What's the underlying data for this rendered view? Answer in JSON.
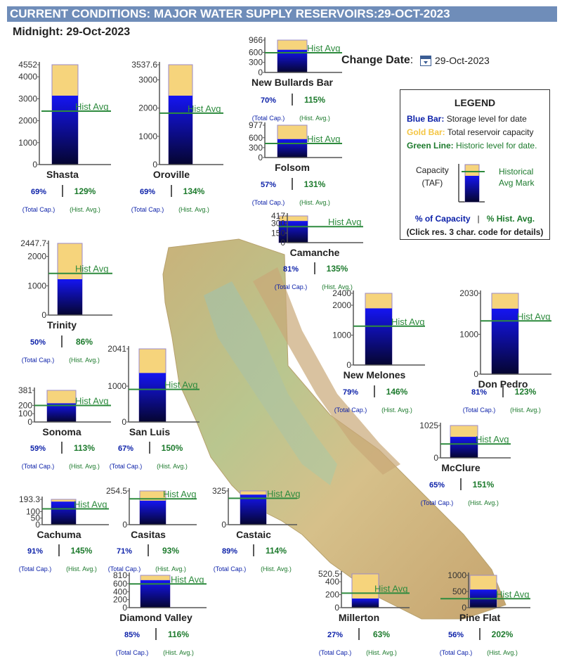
{
  "title": "CURRENT CONDITIONS: MAJOR WATER SUPPLY RESERVOIRS:29-OCT-2023",
  "subtitle": "Midnight: 29-Oct-2023",
  "change_date_label": "Change Date",
  "change_date_colon": ":",
  "date_value": "29-Oct-2023",
  "legend": {
    "title": "LEGEND",
    "blue_label": "Blue Bar:",
    "blue_text": "Storage level for date",
    "gold_label": "Gold Bar:",
    "gold_text": "Total reservoir capacity",
    "green_label": "Green Line:",
    "green_text": "Historic level for date.",
    "capacity": "Capacity",
    "taf": "(TAF)",
    "hist_line1": "Historical",
    "hist_line2": "Avg Mark",
    "pct_capacity": "% of Capacity",
    "sep": "|",
    "pct_hist": "% Hist. Avg.",
    "click_note": "(Click res. 3 char. code for details)"
  },
  "labels": {
    "hist_avg": "Hist Avg",
    "total_cap": "(Total Cap.)",
    "hist_avg_small": "(Hist. Avg.)"
  },
  "colors": {
    "title_bg": "#6f8db9",
    "storage_blue": "#1010e0",
    "capacity_gold": "#f6d47c",
    "hist_green": "#2e8b3e",
    "pct_blue": "#0a1fa8",
    "pct_green": "#1c7a2c"
  },
  "chart_data": {
    "type": "bar",
    "unit": "TAF",
    "reservoirs": [
      {
        "name": "Shasta",
        "capacity": 4552,
        "storage": 3141,
        "hist": 2435,
        "pct_cap": "69%",
        "pct_hist": "129%",
        "ticks": [
          0,
          1000,
          2000,
          3000,
          4000,
          4552
        ],
        "tick_labels": [
          "0",
          "1000",
          "2000",
          "3000",
          "4000",
          "4552"
        ]
      },
      {
        "name": "Oroville",
        "capacity": 3537.6,
        "storage": 2441,
        "hist": 1822,
        "pct_cap": "69%",
        "pct_hist": "134%",
        "ticks": [
          0,
          1000,
          2000,
          3000,
          3537.6
        ],
        "tick_labels": [
          "0",
          "1000",
          "2000",
          "3000",
          "3537.6"
        ]
      },
      {
        "name": "New Bullards Bar",
        "capacity": 966,
        "storage": 676,
        "hist": 588,
        "pct_cap": "70%",
        "pct_hist": "115%",
        "ticks": [
          0,
          300,
          600,
          966
        ],
        "tick_labels": [
          "0",
          "300",
          "600",
          "966"
        ]
      },
      {
        "name": "Folsom",
        "capacity": 977,
        "storage": 557,
        "hist": 425,
        "pct_cap": "57%",
        "pct_hist": "131%",
        "ticks": [
          0,
          300,
          600,
          977
        ],
        "tick_labels": [
          "0",
          "300",
          "600",
          "977"
        ]
      },
      {
        "name": "Camanche",
        "capacity": 417,
        "storage": 338,
        "hist": 250,
        "pct_cap": "81%",
        "pct_hist": "135%",
        "ticks": [
          0,
          150,
          300,
          417
        ],
        "tick_labels": [
          "0",
          "150",
          "300",
          "417"
        ]
      },
      {
        "name": "Trinity",
        "capacity": 2447.7,
        "storage": 1224,
        "hist": 1423,
        "pct_cap": "50%",
        "pct_hist": "86%",
        "ticks": [
          0,
          1000,
          2000,
          2447.7
        ],
        "tick_labels": [
          "0",
          "1000",
          "2000",
          "2447.7"
        ]
      },
      {
        "name": "New Melones",
        "capacity": 2400,
        "storage": 1896,
        "hist": 1299,
        "pct_cap": "79%",
        "pct_hist": "146%",
        "ticks": [
          0,
          1000,
          2000,
          2400
        ],
        "tick_labels": [
          "0",
          "1000",
          "2000",
          "2400"
        ]
      },
      {
        "name": "Don Pedro",
        "capacity": 2030,
        "storage": 1644,
        "hist": 1337,
        "pct_cap": "81%",
        "pct_hist": "123%",
        "ticks": [
          0,
          1000,
          2030
        ],
        "tick_labels": [
          "0",
          "1000",
          "2030"
        ]
      },
      {
        "name": "Sonoma",
        "capacity": 381,
        "storage": 225,
        "hist": 199,
        "pct_cap": "59%",
        "pct_hist": "113%",
        "ticks": [
          0,
          100,
          200,
          381
        ],
        "tick_labels": [
          "0",
          "100",
          "200",
          "381"
        ]
      },
      {
        "name": "San Luis",
        "capacity": 2041,
        "storage": 1367,
        "hist": 911,
        "pct_cap": "67%",
        "pct_hist": "150%",
        "ticks": [
          0,
          1000,
          2041
        ],
        "tick_labels": [
          "0",
          "1000",
          "2041"
        ]
      },
      {
        "name": "McClure",
        "capacity": 1025,
        "storage": 666,
        "hist": 441,
        "pct_cap": "65%",
        "pct_hist": "151%",
        "ticks": [
          0,
          1025
        ],
        "tick_labels": [
          "0",
          "1025"
        ]
      },
      {
        "name": "Cachuma",
        "capacity": 193.3,
        "storage": 176,
        "hist": 121,
        "pct_cap": "91%",
        "pct_hist": "145%",
        "ticks": [
          0,
          50,
          100,
          193.3
        ],
        "tick_labels": [
          "0",
          "50",
          "100",
          "193.3"
        ]
      },
      {
        "name": "Casitas",
        "capacity": 254.5,
        "storage": 181,
        "hist": 195,
        "pct_cap": "71%",
        "pct_hist": "93%",
        "ticks": [
          0,
          254.5
        ],
        "tick_labels": [
          "0",
          "254.5"
        ]
      },
      {
        "name": "Castaic",
        "capacity": 325,
        "storage": 289,
        "hist": 254,
        "pct_cap": "89%",
        "pct_hist": "114%",
        "ticks": [
          0,
          325
        ],
        "tick_labels": [
          "0",
          "325"
        ]
      },
      {
        "name": "Diamond Valley",
        "capacity": 810,
        "storage": 689,
        "hist": 594,
        "pct_cap": "85%",
        "pct_hist": "116%",
        "ticks": [
          0,
          200,
          400,
          600,
          810
        ],
        "tick_labels": [
          "0",
          "200",
          "400",
          "600",
          "810"
        ]
      },
      {
        "name": "Millerton",
        "capacity": 520.5,
        "storage": 141,
        "hist": 224,
        "pct_cap": "27%",
        "pct_hist": "63%",
        "ticks": [
          0,
          200,
          400,
          520.5
        ],
        "tick_labels": [
          "0",
          "200",
          "400",
          "520.5"
        ]
      },
      {
        "name": "Pine Flat",
        "capacity": 1000,
        "storage": 560,
        "hist": 277,
        "pct_cap": "56%",
        "pct_hist": "202%",
        "ticks": [
          0,
          500,
          1000
        ],
        "tick_labels": [
          "0",
          "500",
          "1000"
        ]
      }
    ]
  }
}
